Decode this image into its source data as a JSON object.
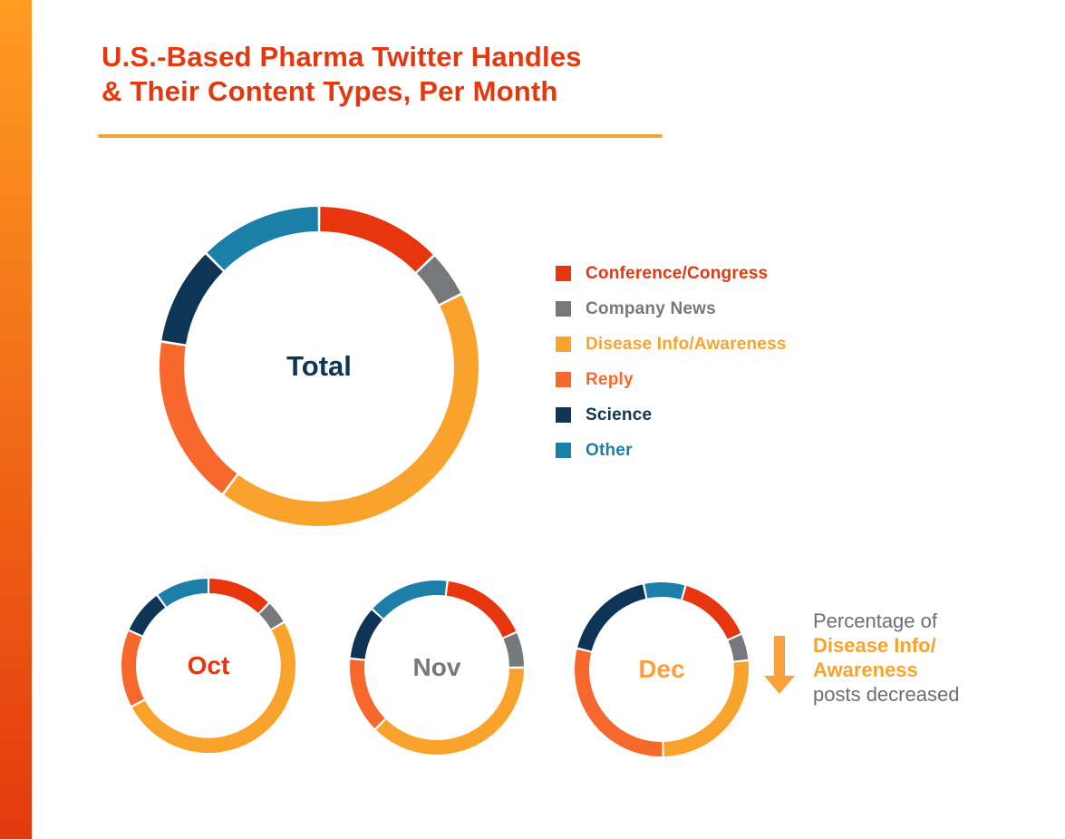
{
  "title": {
    "line1": "U.S.-Based Pharma Twitter Handles",
    "line2": "& Their Content Types, Per Month",
    "color": "#E5380E",
    "underline_color": "#F0A23C"
  },
  "brand": {
    "strip_top": "#FF9C22",
    "strip_bottom": "#E3390D",
    "background": "#FFFFFF"
  },
  "legend": {
    "items": [
      {
        "key": "conference",
        "label": "Conference/Congress",
        "color": "#E7360D"
      },
      {
        "key": "company",
        "label": "Company News",
        "color": "#77787B"
      },
      {
        "key": "disease",
        "label": "Disease Info/Awareness",
        "color": "#F9A32C"
      },
      {
        "key": "reply",
        "label": "Reply",
        "color": "#F8682C"
      },
      {
        "key": "science",
        "label": "Science",
        "color": "#0E3556"
      },
      {
        "key": "other",
        "label": "Other",
        "color": "#1B7FA7"
      }
    ]
  },
  "chart_data": [
    {
      "type": "donut",
      "label": "Total",
      "label_color": "#0E3556",
      "rotation_deg": 0,
      "segments": [
        {
          "key": "conference",
          "category": "Conference/Congress",
          "deg": 46,
          "percent": 12.8
        },
        {
          "key": "company",
          "category": "Company News",
          "deg": 17,
          "percent": 4.7
        },
        {
          "key": "disease",
          "category": "Disease Info/Awareness",
          "deg": 154,
          "percent": 42.8
        },
        {
          "key": "reply",
          "category": "Reply",
          "deg": 62,
          "percent": 17.2
        },
        {
          "key": "science",
          "category": "Science",
          "deg": 36,
          "percent": 10.0
        },
        {
          "key": "other",
          "category": "Other",
          "deg": 45,
          "percent": 12.5
        }
      ]
    },
    {
      "type": "donut",
      "label": "Oct",
      "label_color": "#E7360D",
      "rotation_deg": 0,
      "segments": [
        {
          "key": "conference",
          "category": "Conference/Congress",
          "deg": 44,
          "percent": 12.2
        },
        {
          "key": "company",
          "category": "Company News",
          "deg": 16,
          "percent": 4.4
        },
        {
          "key": "disease",
          "category": "Disease Info/Awareness",
          "deg": 182,
          "percent": 50.6
        },
        {
          "key": "reply",
          "category": "Reply",
          "deg": 52,
          "percent": 14.4
        },
        {
          "key": "science",
          "category": "Science",
          "deg": 30,
          "percent": 8.3
        },
        {
          "key": "other",
          "category": "Other",
          "deg": 36,
          "percent": 10.0
        }
      ]
    },
    {
      "type": "donut",
      "label": "Nov",
      "label_color": "#77787B",
      "rotation_deg": 7,
      "segments": [
        {
          "key": "conference",
          "category": "Conference/Congress",
          "deg": 59,
          "percent": 16.4
        },
        {
          "key": "company",
          "category": "Company News",
          "deg": 24,
          "percent": 6.7
        },
        {
          "key": "disease",
          "category": "Disease Info/Awareness",
          "deg": 135,
          "percent": 37.5
        },
        {
          "key": "reply",
          "category": "Reply",
          "deg": 51,
          "percent": 14.2
        },
        {
          "key": "science",
          "category": "Science",
          "deg": 36,
          "percent": 10.0
        },
        {
          "key": "other",
          "category": "Other",
          "deg": 55,
          "percent": 15.3
        }
      ]
    },
    {
      "type": "donut",
      "label": "Dec",
      "label_color": "#F9A13C",
      "rotation_deg": 16,
      "segments": [
        {
          "key": "conference",
          "category": "Conference/Congress",
          "deg": 50,
          "percent": 13.9
        },
        {
          "key": "company",
          "category": "Company News",
          "deg": 18,
          "percent": 5.0
        },
        {
          "key": "disease",
          "category": "Disease Info/Awareness",
          "deg": 95,
          "percent": 26.4
        },
        {
          "key": "reply",
          "category": "Reply",
          "deg": 105,
          "percent": 29.2
        },
        {
          "key": "science",
          "category": "Science",
          "deg": 64,
          "percent": 17.8
        },
        {
          "key": "other",
          "category": "Other",
          "deg": 28,
          "percent": 7.8
        }
      ]
    }
  ],
  "annotation": {
    "line1": "Percentage of",
    "line2": "Disease Info/",
    "line3": "Awareness",
    "line4": "posts decreased",
    "text_color": "#6D6E71",
    "highlight_color": "#F9A32C",
    "arrow_color": "#F9A13B"
  }
}
